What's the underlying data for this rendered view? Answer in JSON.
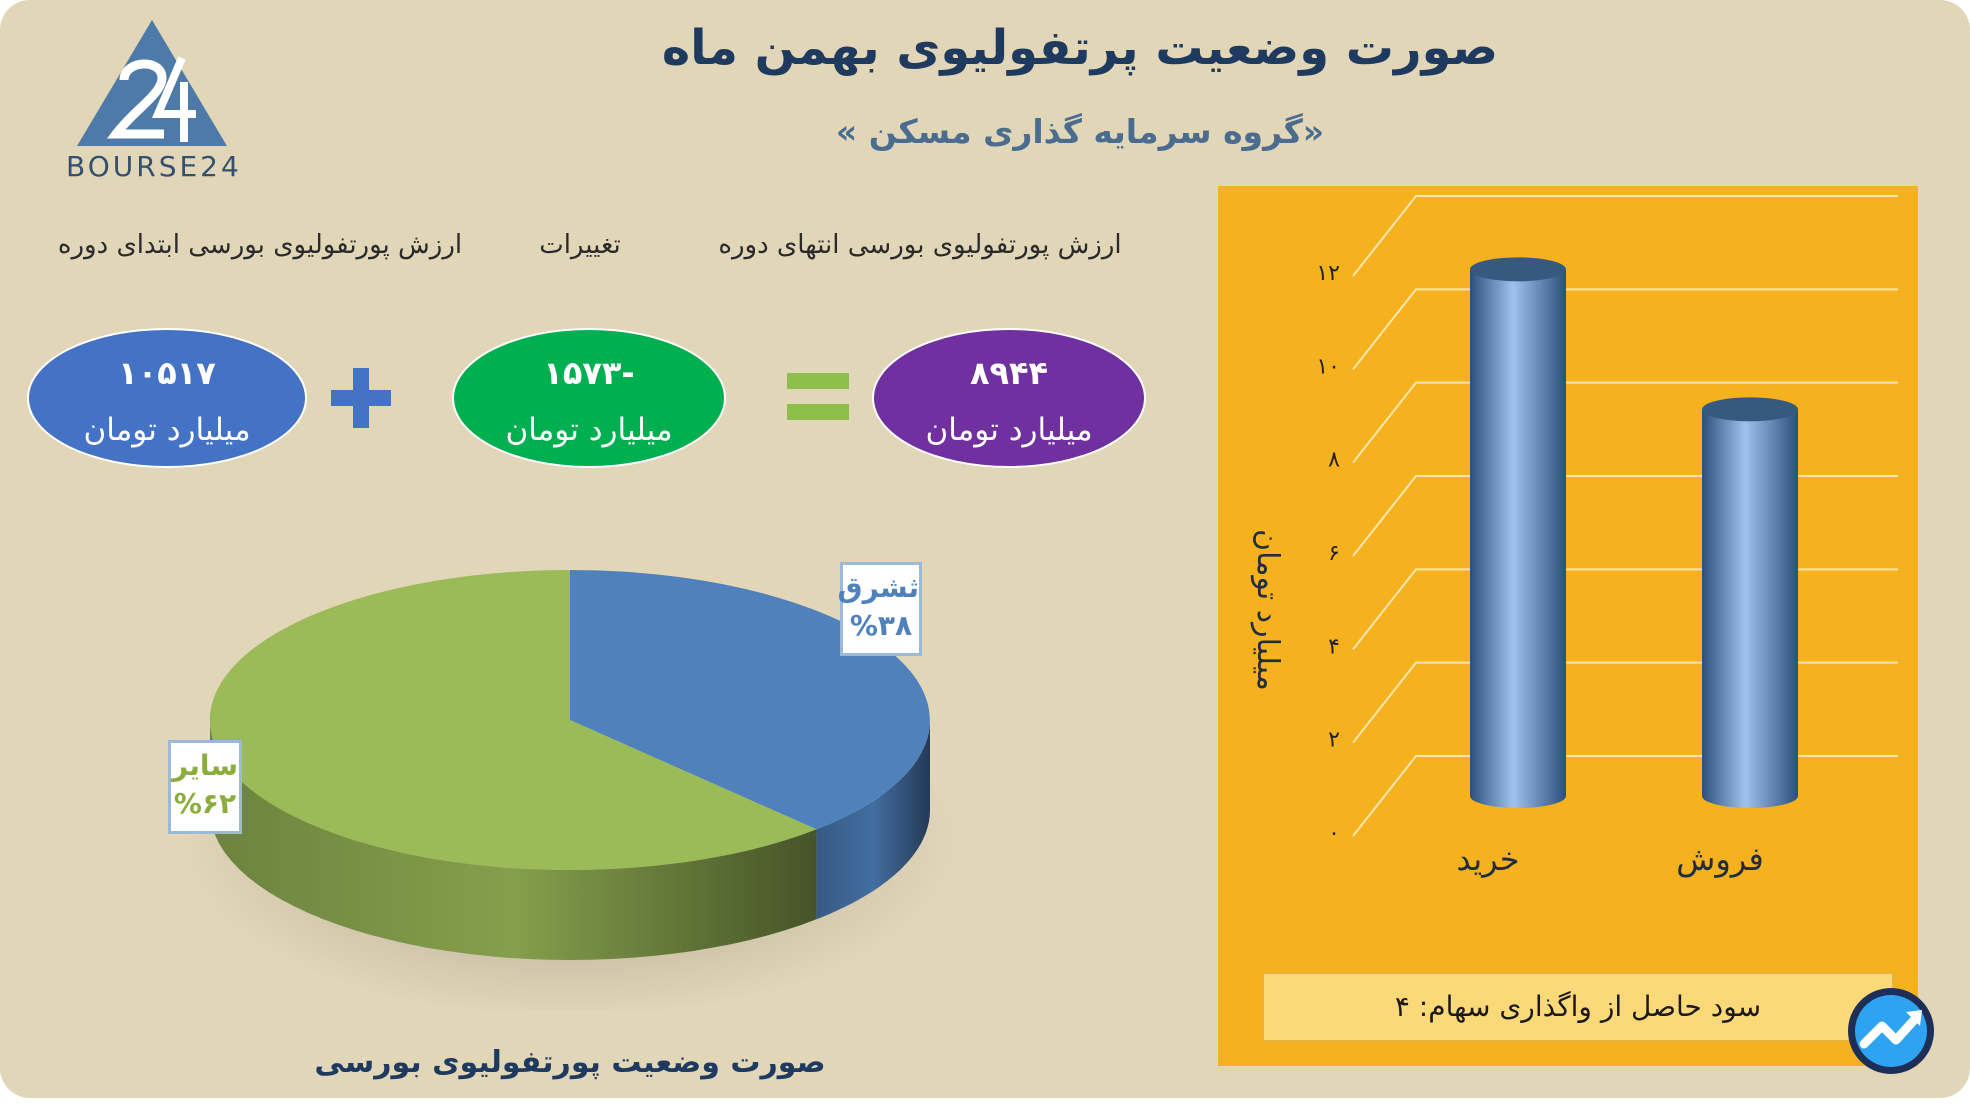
{
  "header": {
    "title": "صورت وضعیت پرتفولیوی بهمن ماه",
    "subtitle": "«گروه سرمایه گذاری مسکن »"
  },
  "logo": {
    "text": "BOURSE24",
    "icon": "bourse24-logo-icon"
  },
  "equation": {
    "end_label": "ارزش پورتفولیوی بورسی انتهای دوره",
    "change_label": "تغییرات",
    "start_label": "ارزش پورتفولیوی بورسی ابتدای دوره",
    "end_value": "۸۹۴۴",
    "change_value": "-۱۵۷۳",
    "start_value": "۱۰۵۱۷",
    "unit": "میلیارد تومان",
    "colors": {
      "end": "#7030a0",
      "change": "#00b050",
      "start": "#4472c4"
    }
  },
  "chart_data": [
    {
      "type": "pie",
      "title": "",
      "caption": "صورت وضعیت پورتفولیوی بورسی",
      "slices": [
        {
          "label": "ثشرق",
          "value": 38,
          "text": "%۳۸",
          "color": "#4f81bd"
        },
        {
          "label": "سایر",
          "value": 62,
          "text": "%۶۲",
          "color": "#9bbb59"
        }
      ]
    },
    {
      "type": "bar",
      "title": "",
      "categories": [
        "خرید",
        "فروش"
      ],
      "values": [
        11.5,
        8.5
      ],
      "ylabel": "میلیارد تومان",
      "ylim": [
        0,
        12
      ],
      "yticks": [
        "۰",
        "۲",
        "۴",
        "۶",
        "۸",
        "۱۰",
        "۱۲"
      ],
      "grid": true,
      "color": "#4a76a8",
      "note": "سود حاصل از واگذاری سهام: ۴"
    }
  ]
}
